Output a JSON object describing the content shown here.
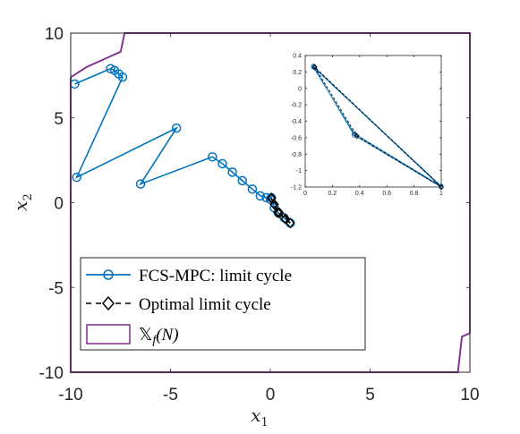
{
  "chart_data": [
    {
      "type": "line",
      "xlabel": "x",
      "xlabel_sub": "1",
      "ylabel": "x",
      "ylabel_sub": "2",
      "xlim": [
        -10,
        10
      ],
      "ylim": [
        -10,
        10
      ],
      "xticks": [
        -10,
        -5,
        0,
        5,
        10
      ],
      "yticks": [
        -10,
        -5,
        0,
        5,
        10
      ],
      "grid": false,
      "legend_placement": "lower-left",
      "series": [
        {
          "name": "FCS-MPC: limit cycle",
          "color": "#0072BD",
          "marker": "circle",
          "line": "solid",
          "x": [
            -9.8,
            -8.0,
            -7.8,
            -7.6,
            -7.4,
            -9.7,
            -4.7,
            -6.5,
            -2.9,
            -2.4,
            -1.9,
            -1.4,
            -0.9,
            -0.5,
            -0.2,
            0.0,
            0.05,
            0.2,
            0.4,
            0.7,
            1.0
          ],
          "y": [
            7.0,
            7.9,
            7.8,
            7.6,
            7.4,
            1.5,
            4.4,
            1.1,
            2.7,
            2.3,
            1.8,
            1.3,
            0.8,
            0.4,
            0.3,
            0.2,
            0.3,
            -0.3,
            -0.6,
            -0.9,
            -1.2
          ]
        },
        {
          "name": "Optimal limit cycle",
          "color": "#000000",
          "marker": "diamond",
          "line": "dashed",
          "x": [
            0.06,
            0.37,
            1.0,
            0.06,
            0.2,
            0.45,
            0.75
          ],
          "y": [
            0.27,
            -0.57,
            -1.2,
            0.27,
            -0.1,
            -0.6,
            -0.95
          ]
        },
        {
          "name": "𝕏",
          "name_sub": "f",
          "name_suffix": "(N)",
          "color": "#7E2F8E",
          "marker": "none",
          "line": "solid",
          "x": [
            -10,
            -9.2,
            -7.5,
            -7.3,
            -7.3,
            10,
            10,
            9.6,
            9.4,
            -10,
            -10
          ],
          "y": [
            7.4,
            8.0,
            8.9,
            10,
            10,
            10,
            -7.7,
            -7.9,
            -10,
            -10,
            7.4
          ]
        }
      ]
    },
    {
      "type": "line",
      "xlim": [
        0,
        1
      ],
      "ylim": [
        -1.2,
        0.4
      ],
      "xticks": [
        0,
        0.2,
        0.4,
        0.6,
        0.8,
        1
      ],
      "yticks": [
        0.4,
        0.2,
        0,
        -0.2,
        -0.4,
        -0.6,
        -0.8,
        -1,
        -1.2
      ],
      "grid": false,
      "series": [
        {
          "color": "#0072BD",
          "marker": "circle",
          "line": "solid",
          "x": [
            0.06,
            0.36,
            1.0,
            0.06,
            0.36,
            1.0,
            0.07
          ],
          "y": [
            0.27,
            -0.57,
            -1.2,
            0.26,
            -0.55,
            -1.19,
            0.25
          ]
        },
        {
          "color": "#000000",
          "marker": "diamond",
          "line": "dashed",
          "x": [
            0.07,
            0.38,
            1.0,
            0.07
          ],
          "y": [
            0.26,
            -0.58,
            -1.2,
            0.26
          ]
        }
      ]
    }
  ]
}
